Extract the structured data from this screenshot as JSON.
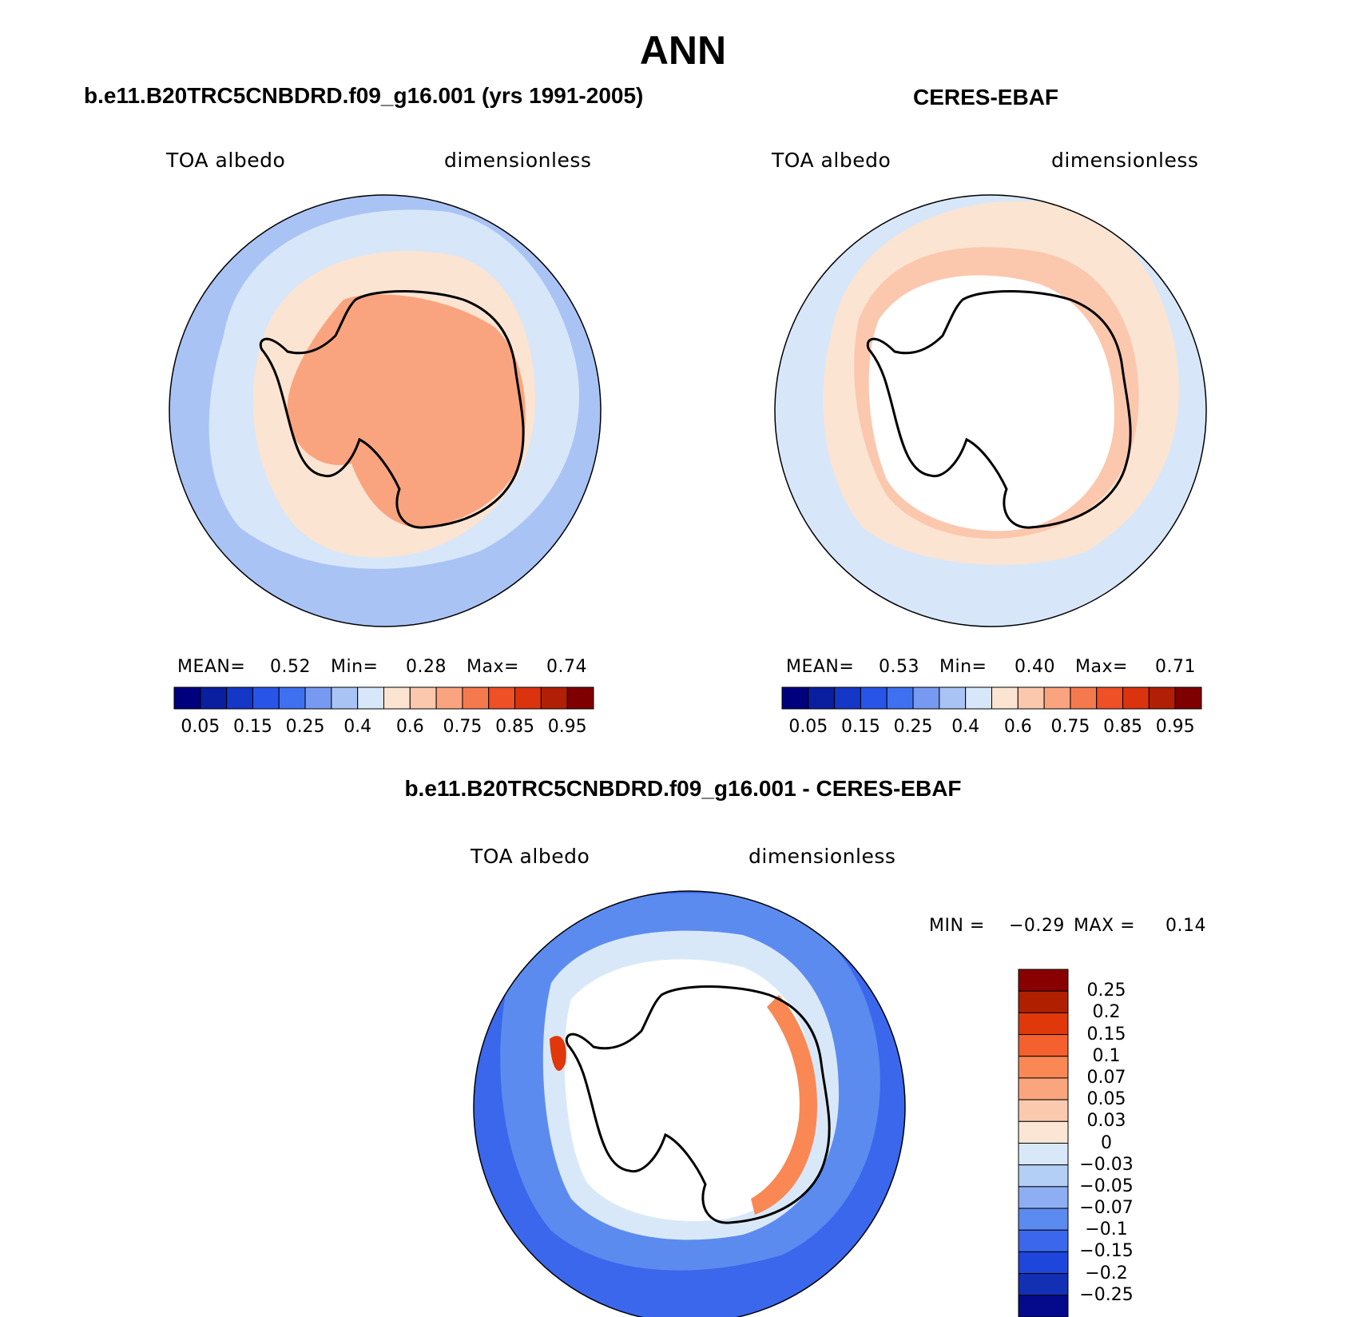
{
  "figure_title": "ANN",
  "panels": [
    {
      "id": "model",
      "title": "b.e11.B20TRC5CNBDRD.f09_g16.001 (yrs 1991-2005)",
      "var_label": "TOA albedo",
      "units_label": "dimensionless",
      "stats": {
        "mean_label": "MEAN=",
        "mean": "0.52",
        "min_label": "Min=",
        "min": "0.28",
        "max_label": "Max=",
        "max": "0.74"
      }
    },
    {
      "id": "obs",
      "title": "CERES-EBAF",
      "var_label": "TOA albedo",
      "units_label": "dimensionless",
      "stats": {
        "mean_label": "MEAN=",
        "mean": "0.53",
        "min_label": "Min=",
        "min": "0.40",
        "max_label": "Max=",
        "max": "0.71"
      }
    },
    {
      "id": "diff",
      "title": "b.e11.B20TRC5CNBDRD.f09_g16.001 - CERES-EBAF",
      "var_label": "TOA albedo",
      "units_label": "dimensionless",
      "stats": {
        "min_label": "MIN =",
        "min": "−0.29",
        "max_label": "MAX =",
        "max": "0.14"
      }
    }
  ],
  "abs_colorbar": {
    "colors": [
      "#00007f",
      "#0a1ea0",
      "#1437c8",
      "#2855e8",
      "#3f70f0",
      "#7799f2",
      "#aac3f5",
      "#d7e7f9",
      "#fbe4d2",
      "#fbc7ad",
      "#f9a47e",
      "#f47a4d",
      "#ef5026",
      "#db330e",
      "#b11f06",
      "#7f0000"
    ],
    "tick_labels": [
      "0.05",
      "0.15",
      "0.25",
      "0.4",
      "0.6",
      "0.75",
      "0.85",
      "0.95"
    ]
  },
  "diff_colorbar": {
    "colors_top_to_bottom": [
      "#880000",
      "#b02000",
      "#e0380a",
      "#f4602e",
      "#f98855",
      "#fba57f",
      "#fbc9ad",
      "#fbe6d6",
      "#d9e8f9",
      "#b4cff6",
      "#8daef3",
      "#5c8bef",
      "#3a67ec",
      "#1e46dc",
      "#1230b4",
      "#050a8c"
    ],
    "tick_labels_top_to_bottom": [
      "0.25",
      "0.2",
      "0.15",
      "0.1",
      "0.07",
      "0.05",
      "0.03",
      "0",
      "−0.03",
      "−0.05",
      "−0.07",
      "−0.1",
      "−0.15",
      "−0.2",
      "−0.25"
    ]
  },
  "chart_data": {
    "type": "heatmap",
    "projection": "south polar stereographic",
    "title": "ANN",
    "panels": [
      {
        "title": "b.e11.B20TRC5CNBDRD.f09_g16.001 (yrs 1991-2005)",
        "variable": "TOA albedo",
        "units": "dimensionless",
        "mean": 0.52,
        "min": 0.28,
        "max": 0.74,
        "levels": [
          0.05,
          0.1,
          0.15,
          0.2,
          0.25,
          0.3,
          0.4,
          0.5,
          0.6,
          0.7,
          0.75,
          0.8,
          0.85,
          0.9,
          0.95
        ]
      },
      {
        "title": "CERES-EBAF",
        "variable": "TOA albedo",
        "units": "dimensionless",
        "mean": 0.53,
        "min": 0.4,
        "max": 0.71,
        "levels": [
          0.05,
          0.1,
          0.15,
          0.2,
          0.25,
          0.3,
          0.4,
          0.5,
          0.6,
          0.7,
          0.75,
          0.8,
          0.85,
          0.9,
          0.95
        ]
      },
      {
        "title": "b.e11.B20TRC5CNBDRD.f09_g16.001 - CERES-EBAF",
        "variable": "TOA albedo",
        "units": "dimensionless",
        "min": -0.29,
        "max": 0.14,
        "levels": [
          -0.25,
          -0.2,
          -0.15,
          -0.1,
          -0.07,
          -0.05,
          -0.03,
          0,
          0.03,
          0.05,
          0.07,
          0.1,
          0.15,
          0.2,
          0.25
        ]
      }
    ]
  }
}
